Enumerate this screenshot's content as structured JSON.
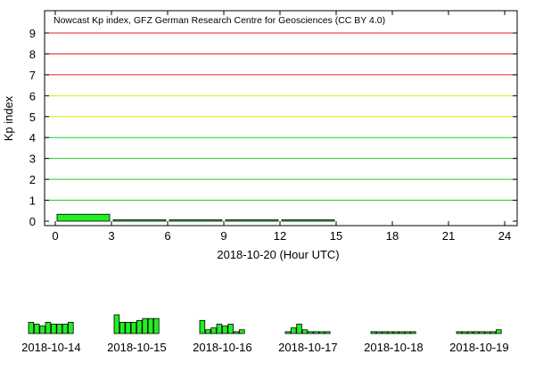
{
  "chart_data": [
    {
      "type": "bar",
      "title": "Nowcast Kp index, GFZ German Research Centre for Geosciences (CC BY 4.0)",
      "ylabel": "Kp index",
      "xlabel": "2018-10-20 (Hour UTC)",
      "xlim": [
        0,
        24
      ],
      "ylim": [
        0,
        9
      ],
      "xticks": [
        0,
        3,
        6,
        9,
        12,
        15,
        18,
        21,
        24
      ],
      "yticks": [
        0,
        1,
        2,
        3,
        4,
        5,
        6,
        7,
        8,
        9
      ],
      "bar_width_hours": 3,
      "bars": [
        {
          "start": 0,
          "value": 0.33
        },
        {
          "start": 3,
          "value": 0.05
        },
        {
          "start": 6,
          "value": 0.05
        },
        {
          "start": 9,
          "value": 0.05
        },
        {
          "start": 12,
          "value": 0.05
        }
      ],
      "grid": true,
      "bar_color": "#22ee22",
      "gridline_colors": {
        "low": "#22cc22",
        "mid": "#e8e800",
        "high": "#ee2222"
      }
    },
    {
      "type": "bar",
      "panels": [
        {
          "date": "2018-10-14",
          "values": [
            2.0,
            1.67,
            1.33,
            2.0,
            1.67,
            1.67,
            1.67,
            2.0
          ]
        },
        {
          "date": "2018-10-15",
          "values": [
            3.33,
            2.0,
            2.0,
            2.0,
            2.33,
            2.67,
            2.67,
            2.67
          ]
        },
        {
          "date": "2018-10-16",
          "values": [
            2.33,
            0.67,
            1.0,
            1.67,
            1.33,
            1.67,
            0.33,
            0.67
          ]
        },
        {
          "date": "2018-10-17",
          "values": [
            0.33,
            1.0,
            1.67,
            0.67,
            0.33,
            0.33,
            0.0,
            0.33
          ]
        },
        {
          "date": "2018-10-18",
          "values": [
            0.33,
            0.0,
            0.33,
            0.0,
            0.0,
            0.0,
            0.0,
            0.33
          ]
        },
        {
          "date": "2018-10-19",
          "values": [
            0.33,
            0.0,
            0.33,
            0.33,
            0.33,
            0.0,
            0.33,
            0.67
          ]
        }
      ],
      "ylim": [
        0,
        9
      ],
      "bar_color": "#22ee22"
    }
  ]
}
